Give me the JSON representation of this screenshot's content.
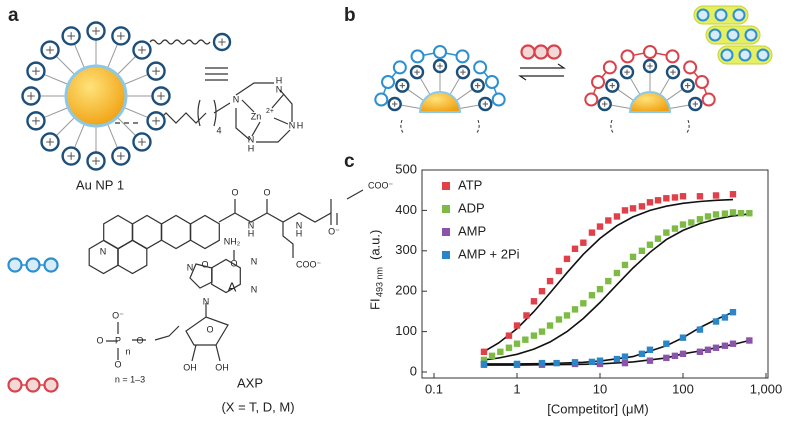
{
  "panels": {
    "a": "a",
    "b": "b",
    "c": "c"
  },
  "nanoparticle_label": "Au NP 1",
  "plus_sign": "+",
  "ligand_structure": [
    "S",
    "4",
    "N",
    "N",
    "N",
    "N",
    "H",
    "H",
    "H",
    "Zn",
    "2+"
  ],
  "molecule_a": {
    "atoms": [
      "N",
      "O",
      "O",
      "O",
      "N",
      "H",
      "O",
      "N",
      "H",
      "COO⁻",
      "O⁻",
      "COO⁻"
    ],
    "name": "A"
  },
  "molecule_axp": {
    "atoms": [
      "NH₂",
      "N",
      "N",
      "N",
      "N",
      "O",
      "O⁻",
      "P",
      "O",
      "O",
      "O",
      "n",
      "OH",
      "OH"
    ],
    "note": "n = 1–3",
    "name": "AXP",
    "variants": "(X = T, D, M)"
  },
  "chart_data": {
    "type": "scatter",
    "x_label": "[Competitor] (μM)",
    "y_label": "FI",
    "y_label_sub": "493 nm",
    "y_label_unit": "(a.u.)",
    "xlim": [
      0.1,
      1000
    ],
    "ylim": [
      0,
      500
    ],
    "log_x": true,
    "xticks": [
      0.1,
      1,
      10,
      100,
      {
        "value": 1000,
        "label": "1,000"
      }
    ],
    "yticks": [
      0,
      100,
      200,
      300,
      400,
      500
    ],
    "legend": "top-left",
    "series": [
      {
        "name": "ATP",
        "color": "#e0404a",
        "x": [
          0.4,
          0.8,
          1.0,
          1.3,
          1.6,
          2,
          2.5,
          3.2,
          4,
          5,
          6.3,
          8,
          10,
          12.6,
          16,
          20,
          25,
          32,
          40,
          50,
          63,
          80,
          100,
          160,
          250,
          400
        ],
        "values": [
          50,
          90,
          115,
          140,
          175,
          200,
          225,
          250,
          280,
          305,
          320,
          345,
          360,
          375,
          385,
          400,
          405,
          410,
          420,
          425,
          430,
          432,
          435,
          435,
          437,
          440
        ]
      },
      {
        "name": "ADP",
        "color": "#7dbb45",
        "x": [
          0.4,
          0.5,
          0.63,
          0.8,
          1,
          1.26,
          1.6,
          2,
          2.5,
          3.2,
          4,
          5,
          6.3,
          8,
          10,
          12.6,
          16,
          20,
          25,
          32,
          40,
          50,
          63,
          80,
          100,
          126,
          160,
          200,
          250,
          320,
          400,
          500,
          630
        ],
        "values": [
          30,
          40,
          50,
          60,
          70,
          80,
          90,
          100,
          115,
          130,
          140,
          155,
          170,
          190,
          205,
          225,
          245,
          265,
          285,
          300,
          315,
          330,
          345,
          355,
          365,
          370,
          378,
          385,
          390,
          392,
          395,
          393,
          393
        ]
      },
      {
        "name": "AMP",
        "color": "#8a55a8",
        "x": [
          0.4,
          1,
          2,
          5,
          10,
          20,
          40,
          63,
          80,
          100,
          160,
          200,
          250,
          320,
          400,
          630
        ],
        "values": [
          18,
          18,
          18,
          20,
          20,
          22,
          28,
          35,
          40,
          45,
          50,
          55,
          60,
          65,
          70,
          78
        ]
      },
      {
        "name": "AMP + 2Pi",
        "color": "#2a86c8",
        "x": [
          0.4,
          1,
          2,
          3,
          5,
          8,
          10,
          16,
          20,
          32,
          40,
          63,
          100,
          160,
          250,
          320,
          400
        ],
        "values": [
          20,
          20,
          22,
          22,
          24,
          25,
          28,
          32,
          38,
          45,
          55,
          70,
          85,
          105,
          125,
          135,
          148
        ]
      }
    ],
    "fits": [
      {
        "x": [
          0.4,
          0.6,
          1,
          1.6,
          2.5,
          4,
          6.3,
          10,
          16,
          25,
          40,
          63,
          100,
          160,
          250,
          400
        ],
        "values": [
          50.6,
          71.7,
          107.5,
          149.6,
          195.5,
          245.7,
          291.3,
          330.8,
          362.1,
          383.9,
          400,
          410.5,
          417.5,
          422.1,
          424.9,
          426.8
        ]
      },
      {
        "x": [
          0.4,
          0.6,
          1,
          1.6,
          2.5,
          4,
          6.3,
          10,
          16,
          25,
          40,
          63,
          100,
          160,
          250,
          400,
          630
        ],
        "values": [
          29.9,
          34.6,
          43.8,
          56.6,
          74.3,
          100,
          132.4,
          172,
          216.1,
          257.5,
          296.4,
          327.7,
          350.4,
          367.4,
          378.5,
          386.3,
          391.3
        ]
      },
      {
        "x": [
          0.4,
          1,
          2.5,
          6.3,
          10,
          25,
          63,
          100,
          160,
          250,
          400,
          630
        ],
        "values": [
          17,
          17,
          18,
          19,
          20,
          25,
          35,
          45,
          52,
          60,
          68,
          78
        ]
      },
      {
        "x": [
          0.4,
          1,
          2.5,
          6.3,
          10,
          25,
          63,
          100,
          160,
          250,
          400
        ],
        "values": [
          20,
          20,
          21,
          24,
          27,
          38,
          65,
          85,
          110,
          130,
          148
        ]
      }
    ]
  }
}
